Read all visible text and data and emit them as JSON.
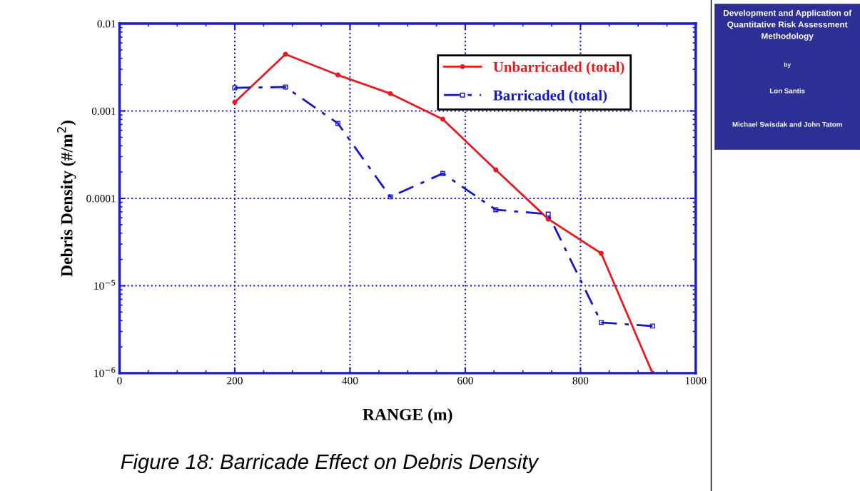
{
  "chart_data": [
    {
      "type": "line",
      "xlabel": "RANGE (m)",
      "ylabel": "Debris Density (#/m$^{2}$)",
      "log": "y",
      "grid": true,
      "legend": "top right",
      "xlim": [
        0,
        1000
      ],
      "xticks": [
        0,
        200,
        400,
        600,
        800,
        1000
      ],
      "ylim": [
        1e-06,
        0.01
      ],
      "yticks": [
        {
          "value": 1e-06,
          "label": "10$^{−6}$"
        },
        {
          "value": 1e-05,
          "label": "10$^{−5}$"
        },
        {
          "value": 0.0001,
          "label": "0.0001"
        },
        {
          "value": 0.001,
          "label": "0.001"
        },
        {
          "value": 0.01,
          "label": "0.01"
        }
      ],
      "series": [
        {
          "name": "Unbarricaded (total)",
          "color": "#e8191f",
          "marker": "circle",
          "line_style": "solid",
          "x": [
            200,
            288,
            379,
            470,
            561,
            653,
            744,
            836,
            925
          ],
          "values": [
            0.00126,
            0.00446,
            0.00258,
            0.00158,
            0.000805,
            0.000212,
            5.8e-05,
            2.35e-05,
            1e-06
          ]
        },
        {
          "name": "Barricaded (total)",
          "color": "#1515d0",
          "marker": "square",
          "line_style": "dashed",
          "x": [
            200,
            288,
            379,
            470,
            561,
            653,
            744,
            836,
            925
          ],
          "values": [
            0.00184,
            0.00188,
            0.00072,
            0.000104,
            0.000193,
            7.4e-05,
            6.6e-05,
            3.8e-06,
            3.46e-06
          ]
        }
      ],
      "annotations": [
        "Figure 18: Barricade Effect on Debris Density"
      ]
    },
    {
      "type": "other",
      "title": "Development and Application of Quantitative Risk Assessment Methodology",
      "annotations": [
        "by",
        "Lon Santis",
        "Michael Swisdak and John Tatom"
      ]
    }
  ]
}
